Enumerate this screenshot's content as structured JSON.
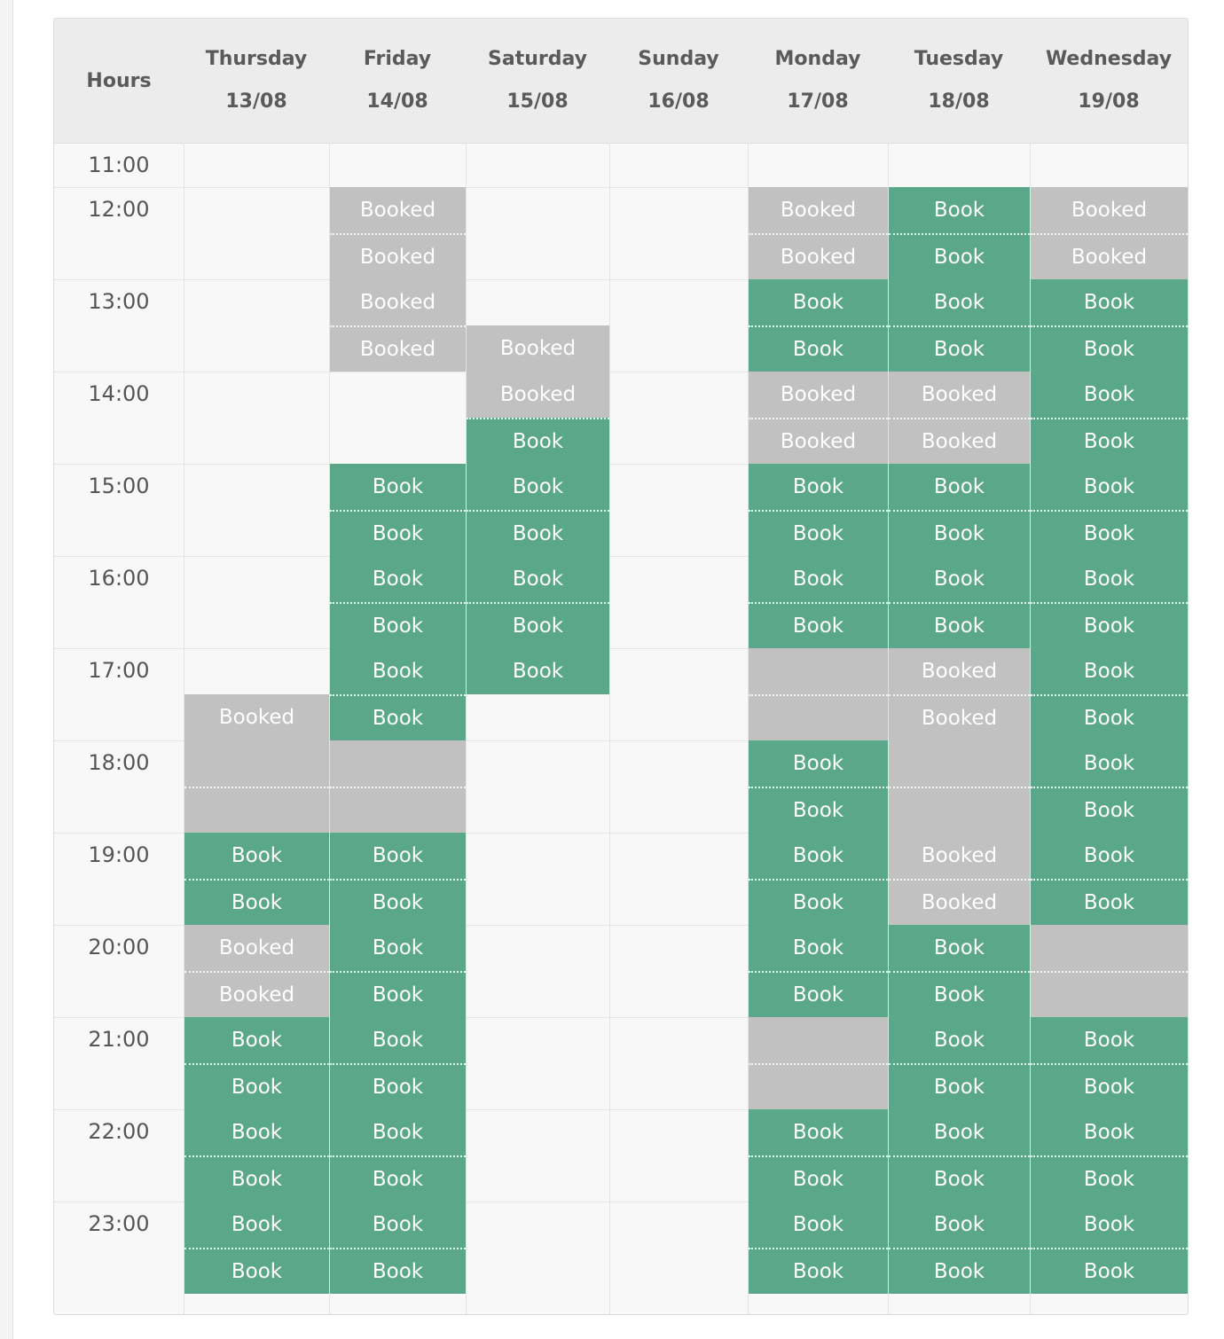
{
  "header": {
    "hours_label": "Hours"
  },
  "days": [
    {
      "day": "Thursday",
      "date": "13/08"
    },
    {
      "day": "Friday",
      "date": "14/08"
    },
    {
      "day": "Saturday",
      "date": "15/08"
    },
    {
      "day": "Sunday",
      "date": "16/08"
    },
    {
      "day": "Monday",
      "date": "17/08"
    },
    {
      "day": "Tuesday",
      "date": "18/08"
    },
    {
      "day": "Wednesday",
      "date": "19/08"
    }
  ],
  "labels": {
    "book": "Book",
    "booked": "Booked"
  },
  "hours": [
    "11:00",
    "12:00",
    "13:00",
    "14:00",
    "15:00",
    "16:00",
    "17:00",
    "18:00",
    "19:00",
    "20:00",
    "21:00",
    "22:00",
    "23:00"
  ],
  "slot_legend": {
    "A": "available (Book)",
    "B": "booked (Booked)",
    "X": "unavailable (grey, no label)",
    "-": "empty"
  },
  "slots": [
    [
      "-----------",
      "---BBXXABAAAA",
      "-----------"
    ],
    [
      "",
      "",
      ""
    ]
  ],
  "columns": [
    {
      "day": "Thursday",
      "slots": [
        "-",
        "-",
        "-",
        "-",
        "-",
        "-",
        "-",
        "-",
        "-",
        "-",
        "-",
        "-",
        "-",
        "B",
        "X",
        "X",
        "A",
        "A",
        "B",
        "B",
        "A",
        "A",
        "A",
        "A",
        "A",
        "A"
      ]
    },
    {
      "day": "Friday",
      "slots": [
        "-",
        "-",
        "B",
        "B",
        "B",
        "B",
        "-",
        "-",
        "A",
        "A",
        "A",
        "A",
        "A",
        "A",
        "X",
        "X",
        "A",
        "A",
        "A",
        "A",
        "A",
        "A",
        "A",
        "A",
        "A",
        "A"
      ]
    },
    {
      "day": "Saturday",
      "slots": [
        "-",
        "-",
        "-",
        "-",
        "-",
        "B",
        "B",
        "A",
        "A",
        "A",
        "A",
        "A",
        "A",
        "-",
        "-",
        "-",
        "-",
        "-",
        "-",
        "-",
        "-",
        "-",
        "-",
        "-",
        "-",
        "-"
      ]
    },
    {
      "day": "Sunday",
      "slots": [
        "-",
        "-",
        "-",
        "-",
        "-",
        "-",
        "-",
        "-",
        "-",
        "-",
        "-",
        "-",
        "-",
        "-",
        "-",
        "-",
        "-",
        "-",
        "-",
        "-",
        "-",
        "-",
        "-",
        "-",
        "-",
        "-"
      ]
    },
    {
      "day": "Monday",
      "slots": [
        "-",
        "-",
        "B",
        "B",
        "A",
        "A",
        "B",
        "B",
        "A",
        "A",
        "A",
        "A",
        "X",
        "X",
        "A",
        "A",
        "A",
        "A",
        "A",
        "A",
        "X",
        "X",
        "A",
        "A",
        "A",
        "A"
      ]
    },
    {
      "day": "Tuesday",
      "slots": [
        "-",
        "-",
        "A",
        "A",
        "A",
        "A",
        "B",
        "B",
        "A",
        "A",
        "A",
        "A",
        "B",
        "B",
        "X",
        "X",
        "B",
        "B",
        "A",
        "A",
        "A",
        "A",
        "A",
        "A",
        "A",
        "A"
      ]
    },
    {
      "day": "Wednesday",
      "slots": [
        "-",
        "-",
        "B",
        "B",
        "A",
        "A",
        "A",
        "A",
        "A",
        "A",
        "A",
        "A",
        "A",
        "A",
        "A",
        "A",
        "A",
        "A",
        "X",
        "X",
        "A",
        "A",
        "A",
        "A",
        "A",
        "A"
      ]
    }
  ]
}
